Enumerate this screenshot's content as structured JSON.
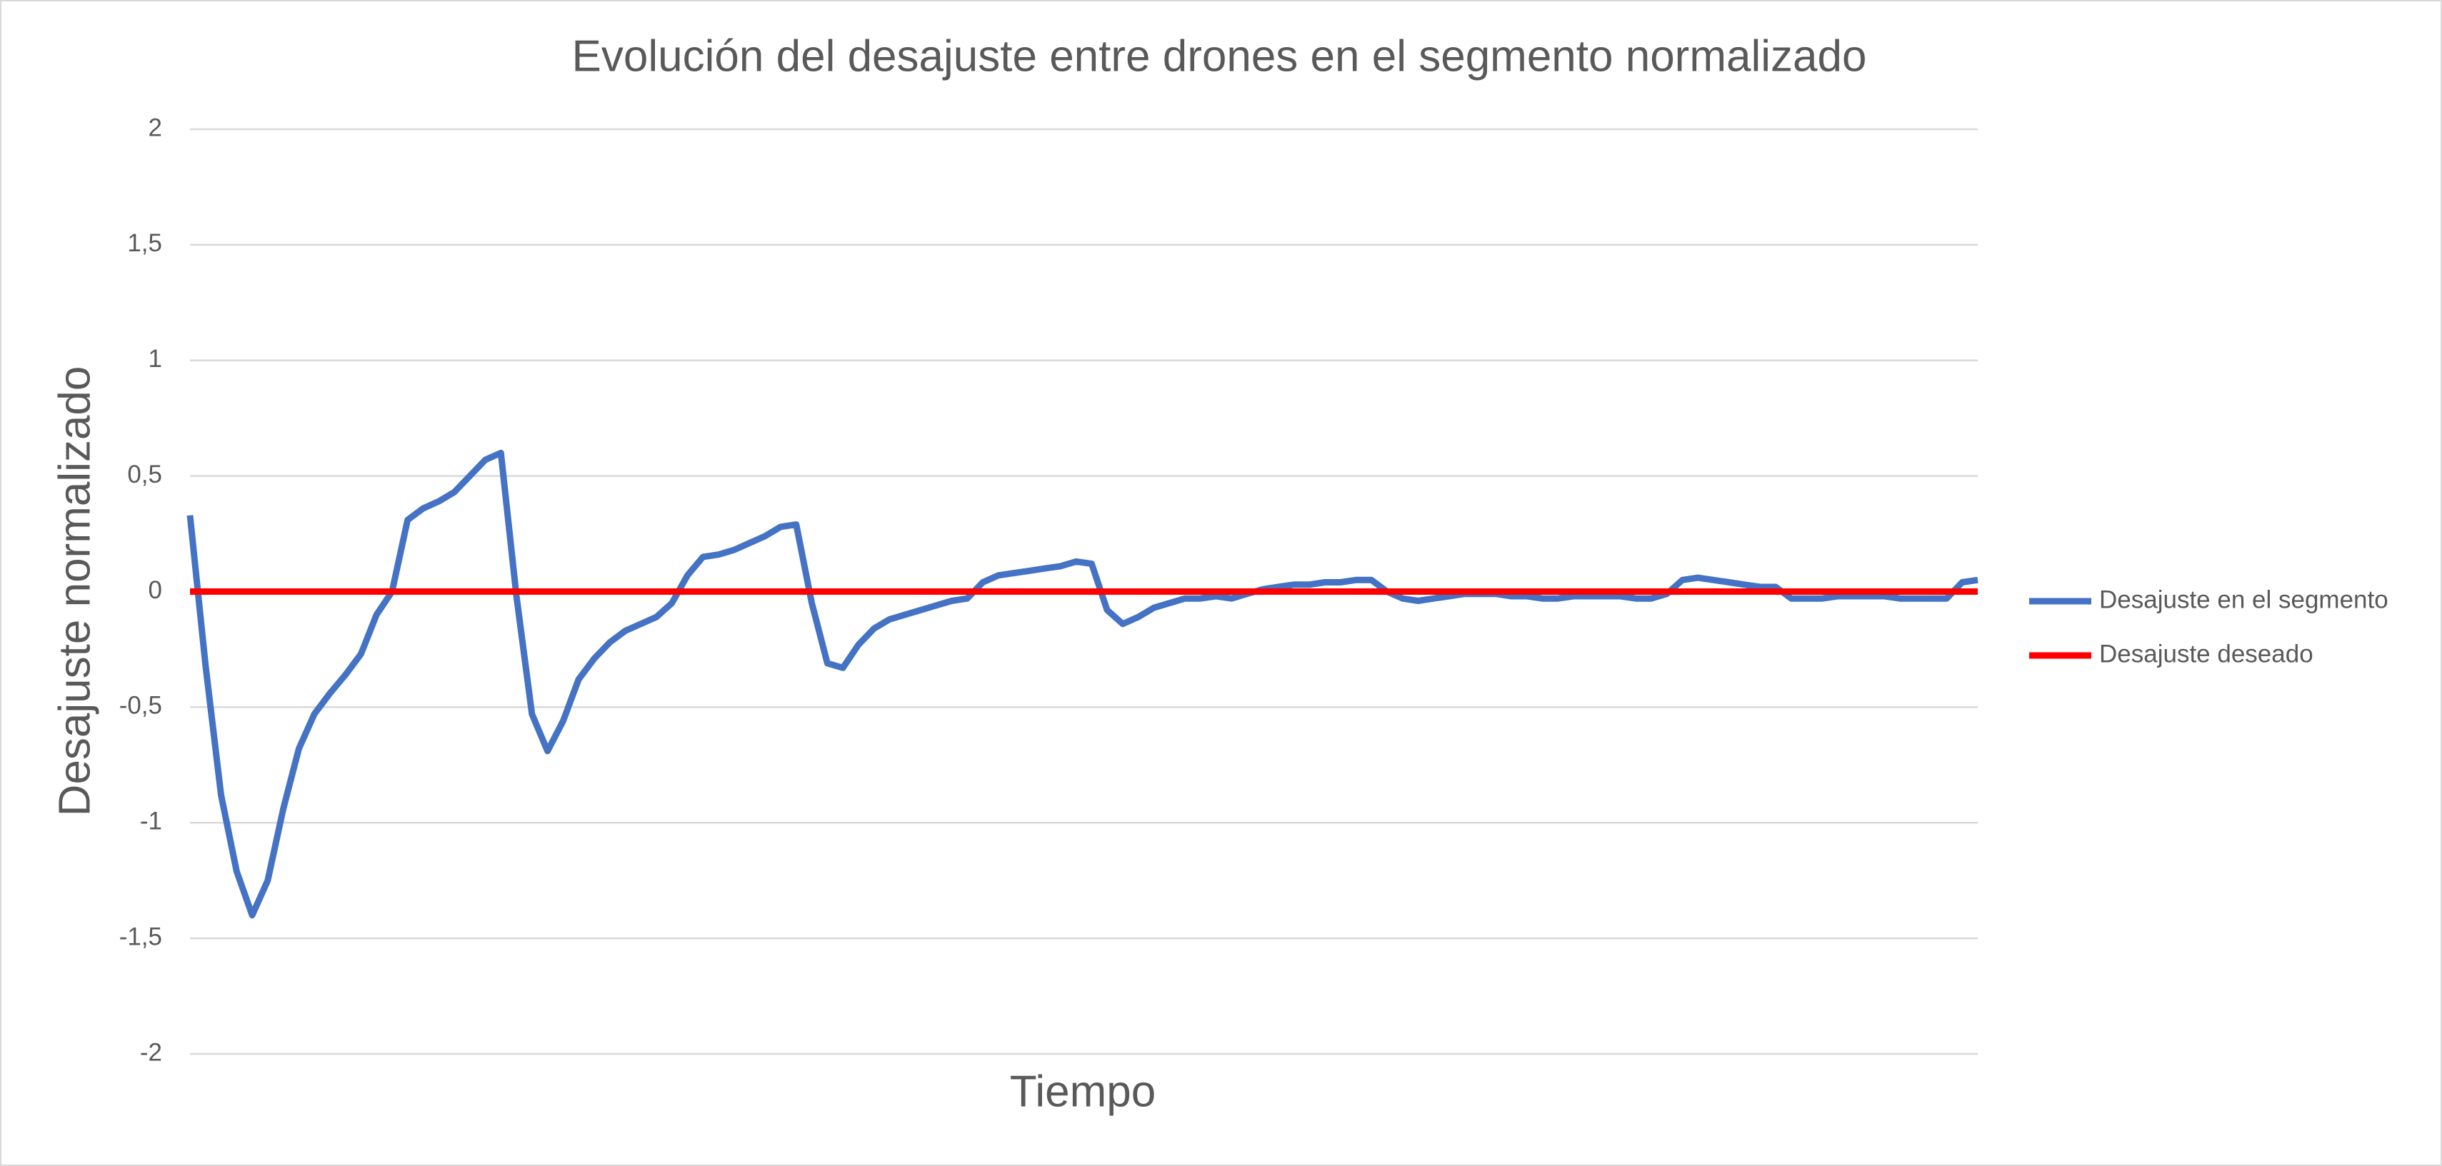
{
  "chart_data": {
    "type": "line",
    "title": "Evolución del desajuste entre drones en el segmento normalizado",
    "x_label": "Tiempo",
    "y_label": "Desajuste normalizado",
    "ylim": [
      -2,
      2
    ],
    "yticks": [
      -2,
      {
        "value": -1.5,
        "label": "-1,5"
      },
      -1,
      {
        "value": -0.5,
        "label": "-0,5"
      },
      0,
      {
        "value": 0.5,
        "label": "0,5"
      },
      1,
      {
        "value": 1.5,
        "label": "1,5"
      },
      2
    ],
    "grid": true,
    "legend": "right",
    "series": [
      {
        "name": "Desajuste en el segmento",
        "color": "#4472c4",
        "values": [
          0.33,
          -0.32,
          -0.88,
          -1.21,
          -1.4,
          -1.25,
          -0.94,
          -0.68,
          -0.53,
          -0.44,
          -0.36,
          -0.27,
          -0.1,
          0.0,
          0.31,
          0.36,
          0.39,
          0.43,
          0.5,
          0.57,
          0.6,
          -0.02,
          -0.53,
          -0.69,
          -0.56,
          -0.38,
          -0.29,
          -0.22,
          -0.17,
          -0.14,
          -0.11,
          -0.05,
          0.07,
          0.15,
          0.16,
          0.18,
          0.21,
          0.24,
          0.28,
          0.29,
          -0.05,
          -0.31,
          -0.33,
          -0.23,
          -0.16,
          -0.12,
          -0.1,
          -0.08,
          -0.06,
          -0.04,
          -0.03,
          0.04,
          0.07,
          0.08,
          0.09,
          0.1,
          0.11,
          0.13,
          0.12,
          -0.08,
          -0.14,
          -0.11,
          -0.07,
          -0.05,
          -0.03,
          -0.03,
          -0.02,
          -0.03,
          -0.01,
          0.01,
          0.02,
          0.03,
          0.03,
          0.04,
          0.04,
          0.05,
          0.05,
          0.0,
          -0.03,
          -0.04,
          -0.03,
          -0.02,
          -0.01,
          -0.01,
          -0.01,
          -0.02,
          -0.02,
          -0.03,
          -0.03,
          -0.02,
          -0.02,
          -0.02,
          -0.02,
          -0.03,
          -0.03,
          -0.01,
          0.05,
          0.06,
          0.05,
          0.04,
          0.03,
          0.02,
          0.02,
          -0.03,
          -0.03,
          -0.03,
          -0.02,
          -0.02,
          -0.02,
          -0.02,
          -0.03,
          -0.03,
          -0.03,
          -0.03,
          0.04,
          0.05
        ]
      },
      {
        "name": "Desajuste deseado",
        "color": "#ff0000",
        "values": [
          0,
          0,
          0,
          0,
          0,
          0,
          0,
          0,
          0,
          0,
          0,
          0,
          0,
          0,
          0,
          0,
          0,
          0,
          0,
          0,
          0,
          0,
          0,
          0,
          0,
          0,
          0,
          0,
          0,
          0,
          0,
          0,
          0,
          0,
          0,
          0,
          0,
          0,
          0,
          0,
          0,
          0,
          0,
          0,
          0,
          0,
          0,
          0,
          0,
          0,
          0,
          0,
          0,
          0,
          0,
          0,
          0,
          0,
          0,
          0,
          0,
          0,
          0,
          0,
          0,
          0,
          0,
          0,
          0,
          0,
          0,
          0,
          0,
          0,
          0,
          0,
          0,
          0,
          0,
          0,
          0,
          0,
          0,
          0,
          0,
          0,
          0,
          0,
          0,
          0,
          0,
          0,
          0,
          0,
          0,
          0,
          0,
          0,
          0,
          0,
          0,
          0,
          0,
          0,
          0,
          0,
          0,
          0,
          0,
          0,
          0,
          0,
          0,
          0,
          0,
          0
        ]
      }
    ]
  }
}
